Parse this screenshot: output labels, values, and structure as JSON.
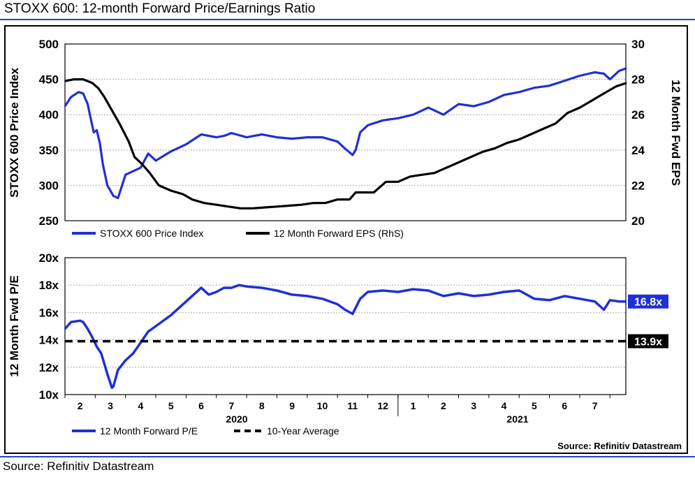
{
  "header": {
    "title": "STOXX 600: 12-month Forward Price/Earnings Ratio",
    "source": "Source: Refinitiv Datastream"
  },
  "colors": {
    "blue": "#1f2fd6",
    "black": "#000000",
    "grid": "#9a9a9a",
    "rule": "#2b3fbf"
  },
  "chart_data": [
    {
      "type": "line",
      "ylabel": "STOXX 600 Price Index",
      "y2label": "12 Month Fwd EPS",
      "ylim": [
        250,
        500
      ],
      "y2lim": [
        20,
        30
      ],
      "yticks": [
        "500",
        "450",
        "400",
        "350",
        "300",
        "250"
      ],
      "y2ticks": [
        "30",
        "28",
        "26",
        "24",
        "22",
        "20"
      ],
      "legend": [
        "STOXX 600 Price Index",
        "12 Month Forward EPS (RhS)"
      ],
      "legend_position": "bottom",
      "grid": true,
      "x_axis": "months Jan-2020 to Jul-2021 (monthly index 0 = start of Feb 2020)",
      "series": [
        {
          "name": "STOXX 600 Price Index",
          "axis": "left",
          "x": [
            0,
            0.2,
            0.45,
            0.6,
            0.75,
            0.85,
            0.95,
            1.05,
            1.15,
            1.25,
            1.4,
            1.6,
            1.75,
            2.0,
            2.25,
            2.5,
            2.75,
            3.0,
            3.5,
            4.0,
            4.5,
            5.0,
            5.25,
            5.5,
            6.0,
            6.5,
            7.0,
            7.5,
            8.0,
            8.5,
            9.0,
            9.25,
            9.5,
            9.6,
            9.75,
            10.0,
            10.5,
            11.0,
            11.5,
            12.0,
            12.5,
            13.0,
            13.5,
            14.0,
            14.5,
            15.0,
            15.5,
            16.0,
            16.5,
            17.0,
            17.5,
            17.8,
            18.0,
            18.3,
            18.5,
            18.55
          ],
          "values": [
            412,
            425,
            432,
            430,
            415,
            395,
            375,
            378,
            360,
            330,
            300,
            285,
            282,
            315,
            320,
            325,
            345,
            335,
            348,
            358,
            372,
            368,
            370,
            374,
            368,
            372,
            368,
            366,
            368,
            368,
            362,
            352,
            343,
            350,
            375,
            385,
            392,
            395,
            400,
            410,
            400,
            415,
            412,
            418,
            428,
            432,
            438,
            441,
            448,
            455,
            460,
            458,
            450,
            462,
            465,
            464
          ]
        },
        {
          "name": "12 Month Forward EPS",
          "axis": "right",
          "x": [
            0,
            0.3,
            0.6,
            0.9,
            1.1,
            1.3,
            1.5,
            1.8,
            2.1,
            2.3,
            2.55,
            2.8,
            3.1,
            3.5,
            3.9,
            4.2,
            4.6,
            5.0,
            5.4,
            5.8,
            6.2,
            6.6,
            7.0,
            7.4,
            7.8,
            8.2,
            8.6,
            9.0,
            9.4,
            9.6,
            9.9,
            10.2,
            10.6,
            11.0,
            11.4,
            11.8,
            12.2,
            12.6,
            13.0,
            13.4,
            13.8,
            14.2,
            14.6,
            15.0,
            15.4,
            15.8,
            16.2,
            16.6,
            17.0,
            17.4,
            17.8,
            18.2,
            18.55
          ],
          "values": [
            27.9,
            28.0,
            28.0,
            27.8,
            27.5,
            27.0,
            26.4,
            25.5,
            24.5,
            23.6,
            23.2,
            22.7,
            22.0,
            21.7,
            21.5,
            21.2,
            21.0,
            20.9,
            20.8,
            20.7,
            20.7,
            20.75,
            20.8,
            20.85,
            20.9,
            21.0,
            21.0,
            21.2,
            21.2,
            21.6,
            21.6,
            21.6,
            22.2,
            22.2,
            22.5,
            22.6,
            22.7,
            23.0,
            23.3,
            23.6,
            23.9,
            24.1,
            24.4,
            24.6,
            24.9,
            25.2,
            25.5,
            26.1,
            26.4,
            26.8,
            27.2,
            27.6,
            27.8
          ]
        }
      ]
    },
    {
      "type": "line",
      "ylabel": "12 Month Fwd P/E",
      "ylim": [
        10,
        20
      ],
      "yticks": [
        "20x",
        "18x",
        "16x",
        "14x",
        "12x",
        "10x"
      ],
      "legend": [
        "12 Month Forward P/E",
        "10-Year Average"
      ],
      "legend_position": "bottom",
      "grid": true,
      "categories": [
        "2",
        "3",
        "4",
        "5",
        "6",
        "7",
        "8",
        "9",
        "10",
        "11",
        "12",
        "1",
        "2",
        "3",
        "4",
        "5",
        "6",
        "7"
      ],
      "year_labels": [
        "2020",
        "2021"
      ],
      "source_note": "Source: Refinitiv Datastream",
      "end_labels": [
        "16.8x",
        "13.9x"
      ],
      "series": [
        {
          "name": "12 Month Forward P/E",
          "x": [
            0,
            0.2,
            0.5,
            0.6,
            0.75,
            0.9,
            1.05,
            1.2,
            1.4,
            1.55,
            1.6,
            1.75,
            2.0,
            2.25,
            2.5,
            2.75,
            3.0,
            3.5,
            4.0,
            4.5,
            4.75,
            5.0,
            5.25,
            5.5,
            5.75,
            6.0,
            6.5,
            7.0,
            7.5,
            8.0,
            8.5,
            9.0,
            9.25,
            9.5,
            9.75,
            10.0,
            10.5,
            11.0,
            11.5,
            12.0,
            12.5,
            13.0,
            13.5,
            14.0,
            14.5,
            15.0,
            15.5,
            16.0,
            16.5,
            17.0,
            17.5,
            17.8,
            18.0,
            18.3,
            18.55
          ],
          "values": [
            14.8,
            15.3,
            15.4,
            15.3,
            14.8,
            14.2,
            13.5,
            13.0,
            11.5,
            10.5,
            10.6,
            11.8,
            12.5,
            13.0,
            13.8,
            14.6,
            15.0,
            15.8,
            16.8,
            17.8,
            17.3,
            17.5,
            17.8,
            17.8,
            18.0,
            17.9,
            17.8,
            17.6,
            17.3,
            17.2,
            17.0,
            16.6,
            16.2,
            15.9,
            17.0,
            17.5,
            17.6,
            17.5,
            17.7,
            17.6,
            17.2,
            17.4,
            17.2,
            17.3,
            17.5,
            17.6,
            17.0,
            16.9,
            17.2,
            17.0,
            16.8,
            16.2,
            16.9,
            16.8,
            16.8
          ]
        },
        {
          "name": "10-Year Average",
          "x": [
            0,
            18.55
          ],
          "values": [
            13.9,
            13.9
          ]
        }
      ]
    }
  ]
}
